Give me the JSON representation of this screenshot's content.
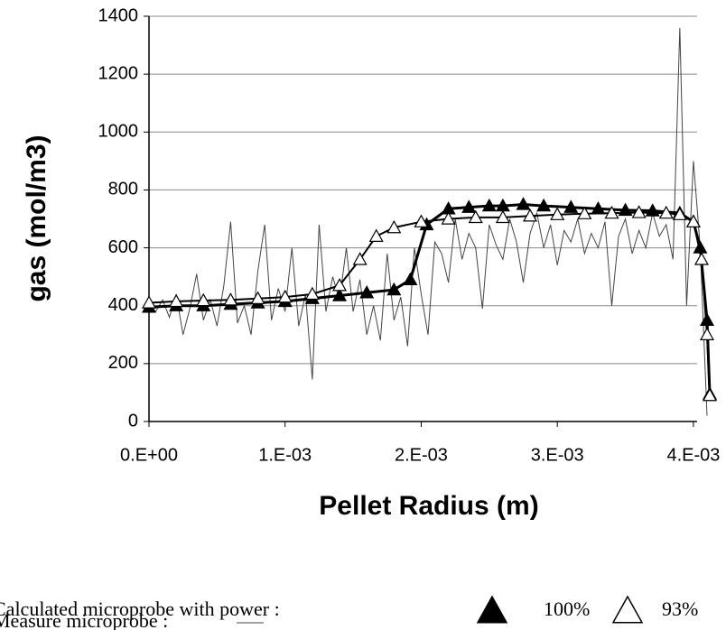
{
  "chart_data": {
    "type": "line",
    "xlabel": "Pellet Radius (m)",
    "ylabel": "gas (mol/m3)",
    "xlim": [
      0,
      0.0041
    ],
    "ylim": [
      0,
      1400
    ],
    "xticks": [
      {
        "value": 0,
        "label": "0.E+00"
      },
      {
        "value": 0.001,
        "label": "1.E-03"
      },
      {
        "value": 0.002,
        "label": "2.E-03"
      },
      {
        "value": 0.003,
        "label": "3.E-03"
      },
      {
        "value": 0.004,
        "label": "4.E-03"
      }
    ],
    "yticks": [
      0,
      200,
      400,
      600,
      800,
      1000,
      1200,
      1400
    ],
    "grid": true,
    "legend_title": "Calculated microprobe with power :",
    "series": [
      {
        "name": "Measure microprobe :",
        "color": "#444444",
        "marker": "none",
        "x": [
          0,
          5e-05,
          0.0001,
          0.00015,
          0.0002,
          0.00025,
          0.0003,
          0.00035,
          0.0004,
          0.00045,
          0.0005,
          0.00055,
          0.0006,
          0.00065,
          0.0007,
          0.00075,
          0.0008,
          0.00085,
          0.0009,
          0.00095,
          0.001,
          0.00105,
          0.0011,
          0.00115,
          0.0012,
          0.00125,
          0.0013,
          0.00135,
          0.0014,
          0.00145,
          0.0015,
          0.00155,
          0.0016,
          0.00165,
          0.0017,
          0.00175,
          0.0018,
          0.00185,
          0.0019,
          0.00195,
          0.002,
          0.00205,
          0.0021,
          0.00215,
          0.0022,
          0.00225,
          0.0023,
          0.00235,
          0.0024,
          0.00245,
          0.0025,
          0.00255,
          0.0026,
          0.00265,
          0.0027,
          0.00275,
          0.0028,
          0.00285,
          0.0029,
          0.00295,
          0.003,
          0.00305,
          0.0031,
          0.00315,
          0.0032,
          0.00325,
          0.0033,
          0.00335,
          0.0034,
          0.00345,
          0.0035,
          0.00355,
          0.0036,
          0.00365,
          0.0037,
          0.00375,
          0.0038,
          0.00385,
          0.0039,
          0.00395,
          0.004,
          0.00405,
          0.0041
        ],
        "values": [
          400,
          380,
          420,
          360,
          440,
          300,
          390,
          510,
          350,
          420,
          330,
          470,
          690,
          340,
          400,
          300,
          520,
          680,
          350,
          460,
          380,
          600,
          330,
          440,
          145,
          680,
          380,
          500,
          420,
          600,
          380,
          490,
          300,
          400,
          280,
          580,
          350,
          430,
          260,
          600,
          440,
          300,
          620,
          580,
          480,
          700,
          560,
          650,
          600,
          390,
          680,
          610,
          560,
          700,
          620,
          480,
          650,
          720,
          600,
          680,
          540,
          660,
          620,
          700,
          580,
          650,
          600,
          690,
          400,
          640,
          700,
          580,
          660,
          600,
          720,
          640,
          680,
          560,
          1360,
          400,
          900,
          600,
          20
        ]
      },
      {
        "name": "100%",
        "color": "#000000",
        "marker": "filled",
        "x": [
          0,
          0.0002,
          0.0004,
          0.0006,
          0.0008,
          0.001,
          0.0012,
          0.0014,
          0.0016,
          0.0018,
          0.00192,
          0.00204,
          0.0022,
          0.00235,
          0.0025,
          0.0026,
          0.00275,
          0.0029,
          0.0031,
          0.0033,
          0.0035,
          0.0037,
          0.0039,
          0.004,
          0.00405,
          0.0041,
          0.00412
        ],
        "values": [
          395,
          400,
          400,
          405,
          410,
          415,
          425,
          435,
          445,
          455,
          490,
          680,
          735,
          740,
          745,
          745,
          750,
          745,
          740,
          735,
          730,
          728,
          720,
          690,
          600,
          350,
          95
        ]
      },
      {
        "name": "93%",
        "color": "#000000",
        "marker": "open",
        "x": [
          0,
          0.0002,
          0.0004,
          0.0006,
          0.0008,
          0.001,
          0.0012,
          0.0014,
          0.00155,
          0.00167,
          0.0018,
          0.002,
          0.0022,
          0.0024,
          0.0026,
          0.0028,
          0.003,
          0.0032,
          0.0034,
          0.0036,
          0.0038,
          0.0039,
          0.004,
          0.00406,
          0.0041,
          0.00412
        ],
        "values": [
          410,
          415,
          418,
          420,
          425,
          430,
          440,
          470,
          560,
          640,
          670,
          690,
          700,
          705,
          705,
          710,
          715,
          718,
          720,
          722,
          720,
          715,
          690,
          560,
          300,
          90
        ]
      }
    ]
  }
}
